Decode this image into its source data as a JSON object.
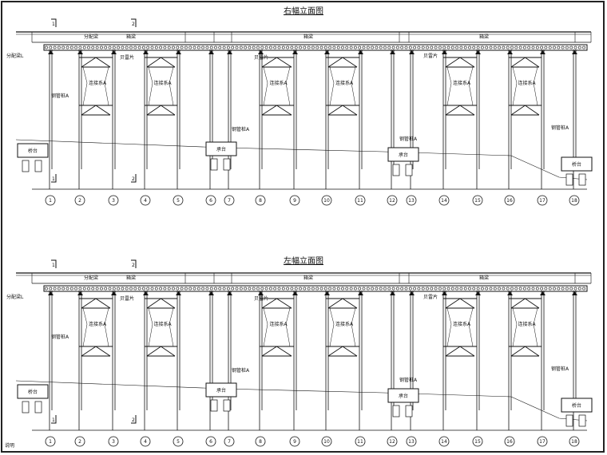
{
  "panels": [
    {
      "title": "右幅立面图",
      "labels": {
        "distribution_beam": "分配梁",
        "box_girder": "箱梁",
        "bailey": "贝雷片",
        "bracing": "连接系A",
        "steel_pile": "钢管桩A",
        "abutment_left": "桥台",
        "abutment_mid": "承台",
        "abutment_right": "桥台",
        "support": "分配梁L"
      },
      "section_marks": [
        "1",
        "2"
      ]
    },
    {
      "title": "左幅立面图",
      "labels": {
        "distribution_beam": "分配梁",
        "box_girder": "箱梁",
        "bailey": "贝雷片",
        "bracing": "连接系A",
        "steel_pile": "钢管桩A",
        "abutment_left": "桥台",
        "abutment_mid": "承台",
        "abutment_right": "桥台",
        "support": "分配梁L"
      },
      "section_marks": [
        "1",
        "2"
      ]
    }
  ],
  "axis_numbers": [
    "1",
    "2",
    "3",
    "4",
    "5",
    "6",
    "7",
    "8",
    "9",
    "10",
    "11",
    "12",
    "13",
    "14",
    "15",
    "16",
    "17",
    "18"
  ],
  "footnote": "说明"
}
